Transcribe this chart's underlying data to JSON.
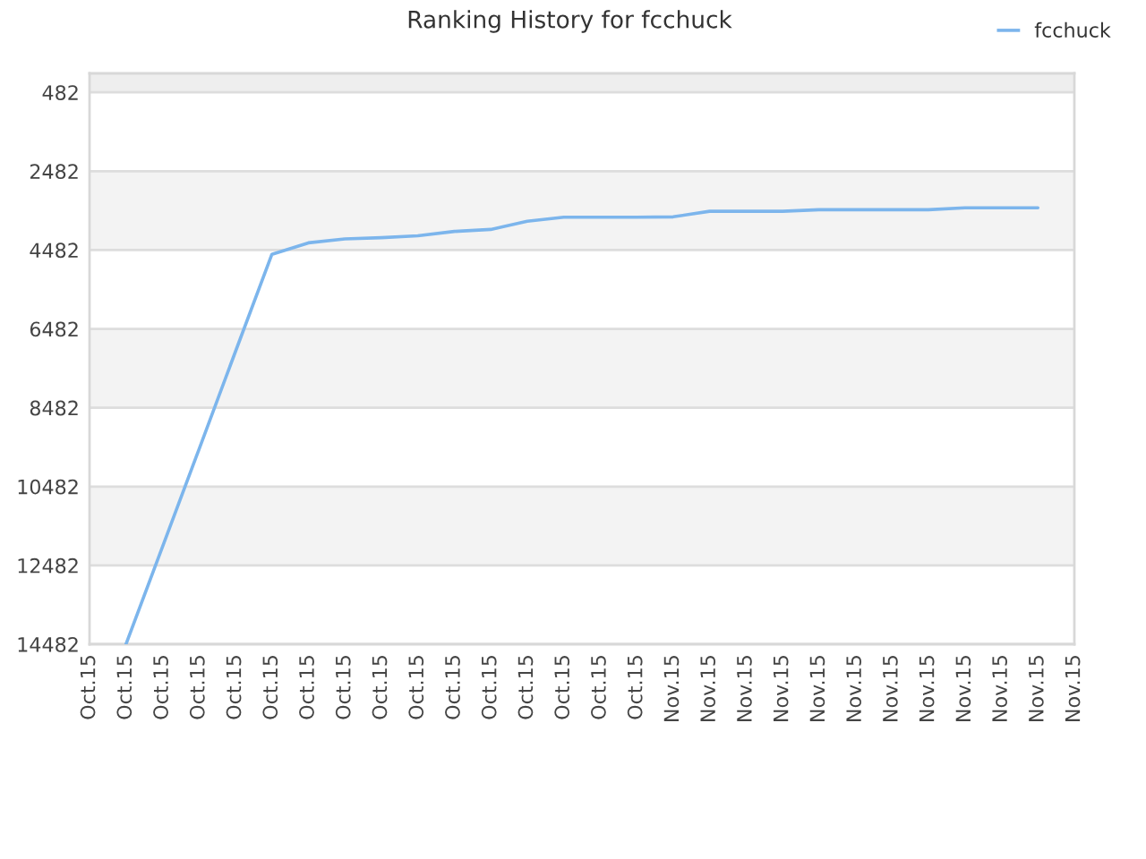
{
  "chart_data": {
    "type": "line",
    "title": "Ranking History for fcchuck",
    "categories": [
      "Oct.15",
      "Oct.15",
      "Oct.15",
      "Oct.15",
      "Oct.15",
      "Oct.15",
      "Oct.15",
      "Oct.15",
      "Oct.15",
      "Oct.15",
      "Oct.15",
      "Oct.15",
      "Oct.15",
      "Oct.15",
      "Oct.15",
      "Oct.15",
      "Nov.15",
      "Nov.15",
      "Nov.15",
      "Nov.15",
      "Nov.15",
      "Nov.15",
      "Nov.15",
      "Nov.15",
      "Nov.15",
      "Nov.15",
      "Nov.15",
      "Nov.15"
    ],
    "series": [
      {
        "name": "fcchuck",
        "color": "#7cb5ec",
        "values": [
          null,
          14480,
          12010,
          9540,
          7060,
          4590,
          4300,
          4200,
          4170,
          4120,
          4010,
          3960,
          3750,
          3650,
          3650,
          3650,
          3640,
          3500,
          3500,
          3500,
          3460,
          3460,
          3460,
          3460,
          3410,
          3410,
          3410,
          null
        ]
      }
    ],
    "ylim": [
      14482,
      1
    ],
    "yticks": [
      482,
      2482,
      4482,
      6482,
      8482,
      10482,
      12482,
      14482
    ],
    "bands": [
      {
        "axis": "y",
        "from": 1,
        "to": 482,
        "color": "#eeeeee"
      },
      {
        "axis": "y",
        "from": 2482,
        "to": 4482,
        "color": "#f3f3f3"
      },
      {
        "axis": "y",
        "from": 6482,
        "to": 8482,
        "color": "#f3f3f3"
      },
      {
        "axis": "y",
        "from": 10482,
        "to": 12482,
        "color": "#f3f3f3"
      }
    ],
    "grid": "y",
    "legend": "top right"
  }
}
